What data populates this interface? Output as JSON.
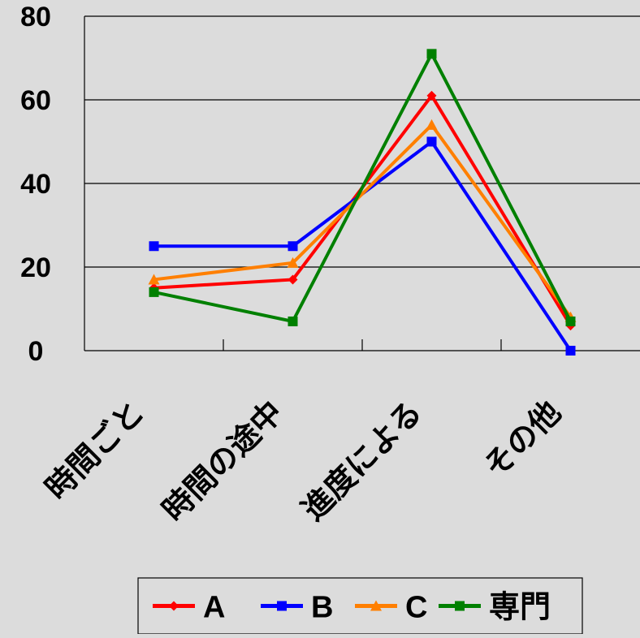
{
  "chart_data": {
    "type": "line",
    "categories": [
      "時間ごと",
      "時間の途中",
      "進度による",
      "その他"
    ],
    "series": [
      {
        "name": "A",
        "values": [
          15,
          17,
          61,
          6
        ],
        "color": "#ff0000",
        "marker": "diamond"
      },
      {
        "name": "B",
        "values": [
          25,
          25,
          50,
          0
        ],
        "color": "#0000ff",
        "marker": "square"
      },
      {
        "name": "C",
        "values": [
          17,
          21,
          54,
          8
        ],
        "color": "#ff7f00",
        "marker": "triangle"
      },
      {
        "name": "専門",
        "values": [
          14,
          7,
          71,
          7
        ],
        "color": "#008000",
        "marker": "square"
      }
    ],
    "ylim": [
      0,
      80
    ],
    "yticks": [
      0,
      20,
      40,
      60,
      80
    ],
    "grid": true,
    "legend_position": "bottom"
  }
}
